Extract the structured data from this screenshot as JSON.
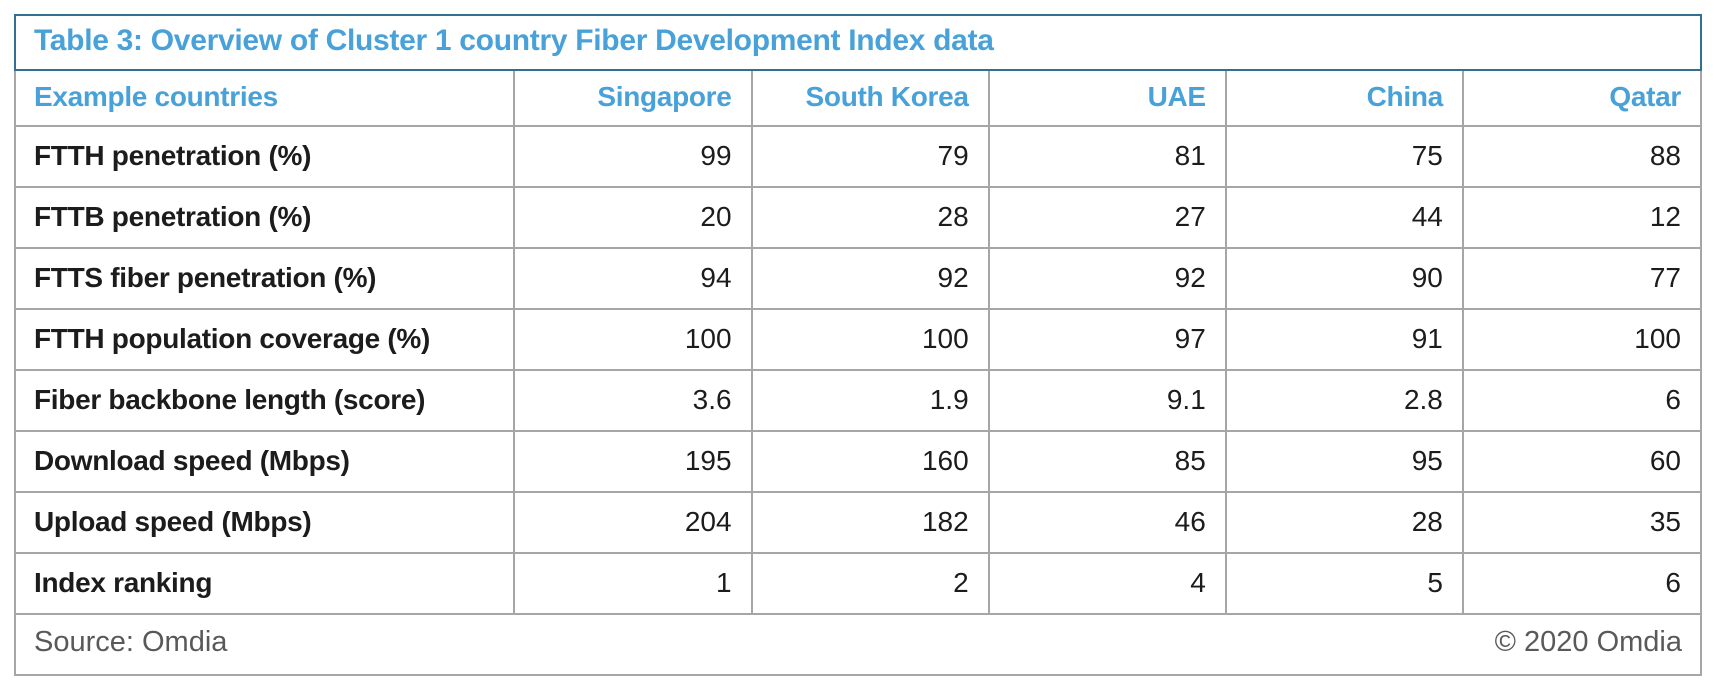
{
  "table": {
    "title": "Table 3: Overview of Cluster 1 country Fiber Development Index data",
    "header": {
      "label": "Example countries",
      "countries": [
        "Singapore",
        "South Korea",
        "UAE",
        "China",
        "Qatar"
      ]
    },
    "rows": [
      {
        "label": "FTTH penetration (%)",
        "values": [
          "99",
          "79",
          "81",
          "75",
          "88"
        ]
      },
      {
        "label": "FTTB penetration (%)",
        "values": [
          "20",
          "28",
          "27",
          "44",
          "12"
        ]
      },
      {
        "label": "FTTS fiber penetration (%)",
        "values": [
          "94",
          "92",
          "92",
          "90",
          "77"
        ]
      },
      {
        "label": "FTTH population coverage (%)",
        "values": [
          "100",
          "100",
          "97",
          "91",
          "100"
        ]
      },
      {
        "label": "Fiber backbone length (score)",
        "values": [
          "3.6",
          "1.9",
          "9.1",
          "2.8",
          "6"
        ]
      },
      {
        "label": "Download speed (Mbps)",
        "values": [
          "195",
          "160",
          "85",
          "95",
          "60"
        ]
      },
      {
        "label": "Upload speed (Mbps)",
        "values": [
          "204",
          "182",
          "46",
          "28",
          "35"
        ]
      },
      {
        "label": "Index ranking",
        "values": [
          "1",
          "2",
          "4",
          "5",
          "6"
        ]
      }
    ],
    "footer": {
      "source": "Source: Omdia",
      "copyright": "© 2020 Omdia"
    }
  },
  "colors": {
    "accent_blue": "#48a1d9",
    "title_border_teal": "#31708f",
    "grid_gray": "#a6a6a6",
    "body_text": "#1c1c1c",
    "footer_text": "#595959"
  }
}
